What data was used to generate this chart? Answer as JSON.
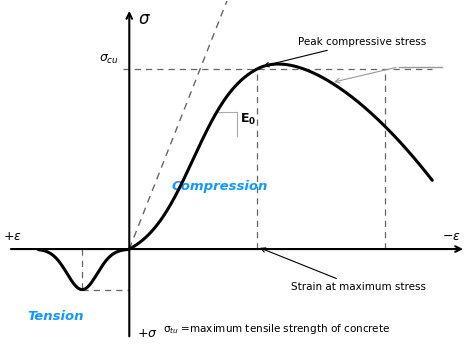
{
  "background_color": "#ffffff",
  "curve_color": "#000000",
  "dashed_color": "#666666",
  "gray_line_color": "#999999",
  "compression_text_color": "#1199ff",
  "tension_text_color": "#1199ff",
  "axis_color": "#000000",
  "peak_label": "Peak compressive stress",
  "strain_max_label": "Strain at maximum stress",
  "sigma_tu_desc": "σ$_{tu}$ =maximum tensile strength of concrete",
  "compression_label": "Compression",
  "tension_label": "Tension",
  "xlim": [
    -0.38,
    1.02
  ],
  "ylim": [
    -0.42,
    1.1
  ]
}
